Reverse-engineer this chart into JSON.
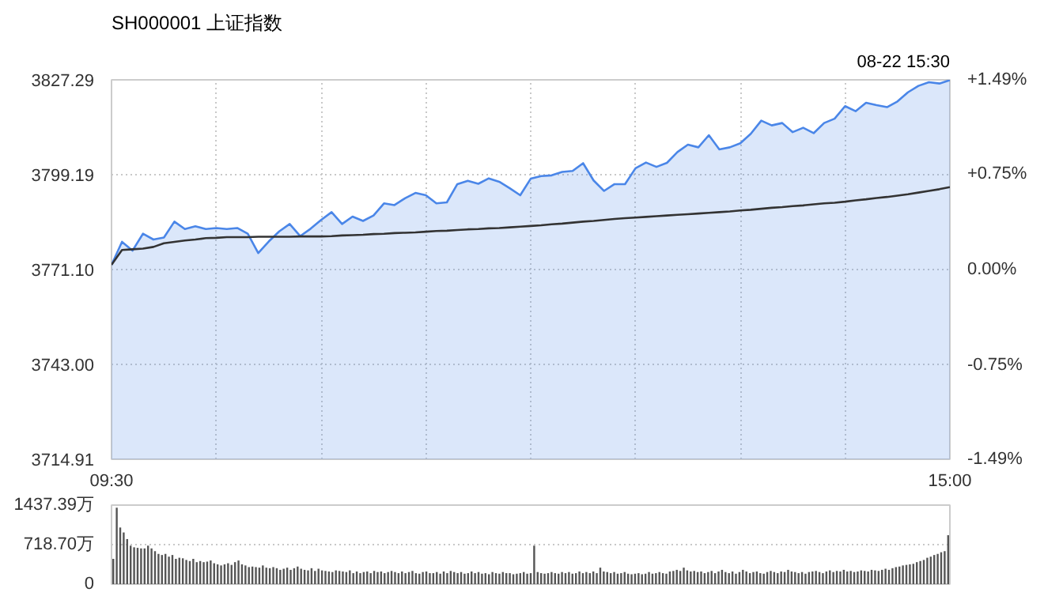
{
  "chart_data": [
    {
      "type": "area",
      "title": "SH000001 上证指数",
      "annotations": [
        "08-22 15:30"
      ],
      "categories": [
        "09:30",
        null,
        null,
        null,
        null,
        null,
        null,
        null,
        null,
        null,
        null,
        null,
        null,
        null,
        null,
        null,
        null,
        null,
        null,
        null,
        null,
        null,
        null,
        null,
        null,
        null,
        null,
        null,
        null,
        null,
        null,
        null,
        null,
        null,
        null,
        null,
        null,
        null,
        null,
        null,
        null,
        null,
        null,
        null,
        null,
        null,
        null,
        null,
        null,
        null,
        null,
        null,
        null,
        null,
        null,
        null,
        null,
        null,
        null,
        null,
        null,
        null,
        null,
        null,
        null,
        null,
        null,
        null,
        null,
        null,
        null,
        null,
        null,
        null,
        null,
        null,
        null,
        null,
        null,
        null,
        "15:00"
      ],
      "ylim": [
        3714.91,
        3827.29
      ],
      "yticks": [
        {
          "value": 3714.91,
          "label": "3714.91"
        },
        {
          "value": 3743.0,
          "label": "3743.00"
        },
        {
          "value": 3771.1,
          "label": "3771.10"
        },
        {
          "value": 3799.19,
          "label": "3799.19"
        },
        {
          "value": 3827.29,
          "label": "3827.29"
        }
      ],
      "y2lim": [
        -1.49,
        1.49
      ],
      "y2ticks": [
        {
          "value": -1.49,
          "label": "-1.49%"
        },
        {
          "value": -0.75,
          "label": "-0.75%"
        },
        {
          "value": 0,
          "label": "0.00%"
        },
        {
          "value": 0.75,
          "label": "+0.75%"
        },
        {
          "value": 1.49,
          "label": "+1.49%"
        }
      ],
      "grid": true,
      "marker": "none",
      "line_style": "solid",
      "series": [
        {
          "type": "area",
          "color": "#4a86e8",
          "values": [
            3772.5,
            3779.3,
            3776.7,
            3781.7,
            3780.0,
            3780.6,
            3785.3,
            3783.1,
            3783.9,
            3783.1,
            3783.4,
            3783.1,
            3783.4,
            3781.7,
            3776.0,
            3779.4,
            3782.4,
            3784.6,
            3781.0,
            3783.2,
            3785.8,
            3788.1,
            3784.6,
            3786.8,
            3785.5,
            3787.1,
            3790.7,
            3790.2,
            3792.2,
            3793.8,
            3793.1,
            3790.7,
            3791.0,
            3796.4,
            3797.4,
            3796.5,
            3798.1,
            3797.1,
            3795.2,
            3793.1,
            3798.0,
            3798.8,
            3799.0,
            3800.0,
            3800.3,
            3802.6,
            3797.5,
            3794.4,
            3796.4,
            3796.4,
            3801.1,
            3802.8,
            3801.5,
            3802.7,
            3805.9,
            3808.1,
            3807.3,
            3810.9,
            3806.7,
            3807.3,
            3808.5,
            3811.3,
            3815.2,
            3813.8,
            3814.5,
            3811.8,
            3813.1,
            3811.5,
            3814.5,
            3815.8,
            3819.5,
            3818.0,
            3820.5,
            3819.8,
            3819.2,
            3820.9,
            3823.6,
            3825.5,
            3826.6,
            3826.2,
            3827.2
          ]
        },
        {
          "type": "line",
          "color": "#333333",
          "values": [
            3772.5,
            3776.9,
            3777.1,
            3777.3,
            3777.8,
            3778.9,
            3779.3,
            3779.7,
            3780.0,
            3780.4,
            3780.5,
            3780.7,
            3780.7,
            3780.7,
            3780.8,
            3780.8,
            3780.8,
            3780.8,
            3780.9,
            3780.9,
            3780.9,
            3781.0,
            3781.2,
            3781.3,
            3781.4,
            3781.6,
            3781.7,
            3781.9,
            3782.0,
            3782.1,
            3782.3,
            3782.5,
            3782.6,
            3782.8,
            3783.0,
            3783.1,
            3783.3,
            3783.4,
            3783.6,
            3783.8,
            3784.0,
            3784.2,
            3784.5,
            3784.7,
            3785.0,
            3785.3,
            3785.5,
            3785.8,
            3786.1,
            3786.3,
            3786.5,
            3786.7,
            3786.9,
            3787.1,
            3787.3,
            3787.5,
            3787.7,
            3787.9,
            3788.1,
            3788.3,
            3788.6,
            3788.8,
            3789.1,
            3789.4,
            3789.6,
            3789.9,
            3790.1,
            3790.4,
            3790.7,
            3790.9,
            3791.2,
            3791.6,
            3791.9,
            3792.3,
            3792.6,
            3793.0,
            3793.4,
            3793.9,
            3794.4,
            3794.9,
            3795.5
          ]
        }
      ]
    },
    {
      "type": "bar",
      "color": "#555555",
      "grid": "y",
      "tick_labels": "y",
      "ylim": [
        0,
        1437.39
      ],
      "yticks": [
        0,
        {
          "value": 718.7,
          "label": "718.70万"
        },
        {
          "value": 1437.39,
          "label": "1437.39万"
        }
      ],
      "categories": [
        null,
        null,
        null,
        null,
        null,
        null,
        null,
        null,
        null,
        null,
        null,
        null,
        null,
        null,
        null,
        null,
        null,
        null,
        null,
        null,
        null,
        null,
        null,
        null,
        null,
        null,
        null,
        null,
        null,
        null,
        null,
        null,
        null,
        null,
        null,
        null,
        null,
        null,
        null,
        null,
        null,
        null,
        null,
        null,
        null,
        null,
        null,
        null,
        null,
        null,
        null,
        null,
        null,
        null,
        null,
        null,
        null,
        null,
        null,
        null,
        null,
        null,
        null,
        null,
        null,
        null,
        null,
        null,
        null,
        null,
        null,
        null,
        null,
        null,
        null,
        null,
        null,
        null,
        null,
        null,
        null,
        null,
        null,
        null,
        null,
        null,
        null,
        null,
        null,
        null,
        null,
        null,
        null,
        null,
        null,
        null,
        null,
        null,
        null,
        null,
        null,
        null,
        null,
        null,
        null,
        null,
        null,
        null,
        null,
        null,
        null,
        null,
        null,
        null,
        null,
        null,
        null,
        null,
        null,
        null,
        null,
        null,
        null,
        null,
        null,
        null,
        null,
        null,
        null,
        null,
        null,
        null,
        null,
        null,
        null,
        null,
        null,
        null,
        null,
        null,
        null,
        null,
        null,
        null,
        null,
        null,
        null,
        null,
        null,
        null,
        null,
        null,
        null,
        null,
        null,
        null,
        null,
        null,
        null,
        null,
        null,
        null,
        null,
        null,
        null,
        null,
        null,
        null,
        null,
        null,
        null,
        null,
        null,
        null,
        null,
        null,
        null,
        null,
        null,
        null,
        null,
        null,
        null,
        null,
        null,
        null,
        null,
        null,
        null,
        null,
        null,
        null,
        null,
        null,
        null,
        null,
        null,
        null,
        null,
        null,
        null,
        null,
        null,
        null,
        null,
        null,
        null,
        null,
        null,
        null,
        null,
        null,
        null,
        null,
        null,
        null,
        null,
        null,
        null,
        null,
        null,
        null,
        null,
        null,
        null,
        null,
        null,
        null,
        null,
        null,
        null,
        null,
        null,
        null,
        null,
        null,
        null,
        null,
        null,
        null,
        null
      ],
      "values": [
        460,
        1390,
        1030,
        940,
        820,
        700,
        670,
        660,
        650,
        650,
        700,
        650,
        600,
        550,
        530,
        550,
        500,
        530,
        460,
        480,
        470,
        440,
        420,
        460,
        400,
        420,
        400,
        410,
        430,
        380,
        360,
        340,
        360,
        380,
        350,
        400,
        430,
        360,
        340,
        310,
        320,
        310,
        300,
        340,
        300,
        290,
        310,
        290,
        260,
        280,
        300,
        260,
        290,
        320,
        280,
        260,
        250,
        290,
        240,
        280,
        250,
        240,
        230,
        220,
        250,
        240,
        230,
        220,
        250,
        200,
        230,
        200,
        220,
        230,
        200,
        240,
        220,
        230,
        200,
        220,
        240,
        220,
        200,
        230,
        200,
        220,
        240,
        200,
        190,
        220,
        230,
        200,
        200,
        220,
        190,
        230,
        200,
        240,
        220,
        200,
        220,
        190,
        200,
        230,
        200,
        220,
        190,
        200,
        180,
        220,
        200,
        190,
        220,
        200,
        200,
        180,
        190,
        200,
        220,
        190,
        200,
        700,
        220,
        200,
        190,
        200,
        220,
        200,
        190,
        220,
        200,
        220,
        190,
        200,
        230,
        200,
        220,
        200,
        230,
        200,
        300,
        230,
        220,
        200,
        220,
        190,
        200,
        220,
        190,
        180,
        190,
        200,
        180,
        190,
        220,
        190,
        200,
        220,
        200,
        190,
        230,
        240,
        260,
        240,
        300,
        250,
        230,
        240,
        220,
        230,
        200,
        220,
        240,
        200,
        230,
        260,
        220,
        200,
        230,
        190,
        220,
        260,
        230,
        200,
        220,
        230,
        200,
        190,
        220,
        240,
        220,
        200,
        230,
        220,
        260,
        230,
        220,
        200,
        220,
        190,
        220,
        230,
        240,
        220,
        200,
        230,
        250,
        220,
        240,
        230,
        260,
        230,
        240,
        220,
        230,
        250,
        240,
        230,
        260,
        250,
        240,
        260,
        280,
        260,
        290,
        310,
        320,
        340,
        350,
        360,
        370,
        400,
        420,
        440,
        480,
        500,
        530,
        550,
        580,
        600,
        890
      ]
    }
  ]
}
